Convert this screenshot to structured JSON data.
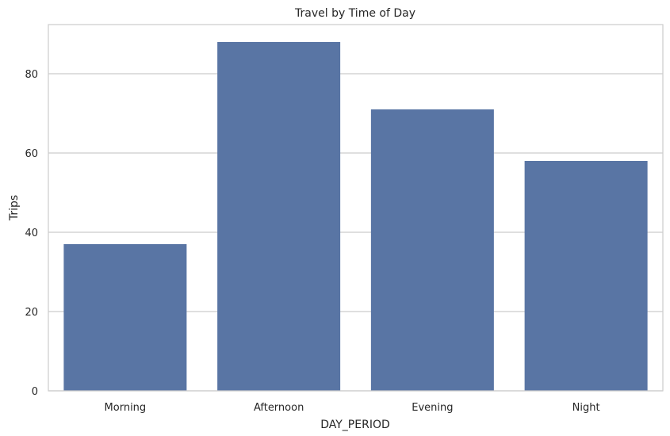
{
  "chart_data": {
    "type": "bar",
    "title": "Travel by Time of Day",
    "xlabel": "DAY_PERIOD",
    "ylabel": "Trips",
    "categories": [
      "Morning",
      "Afternoon",
      "Evening",
      "Night"
    ],
    "values": [
      37,
      88,
      71,
      58
    ],
    "ylim": [
      0,
      92.4
    ],
    "yticks": [
      0,
      20,
      40,
      60,
      80
    ],
    "grid": true,
    "legend": "none",
    "bar_color": "#5975a4"
  }
}
